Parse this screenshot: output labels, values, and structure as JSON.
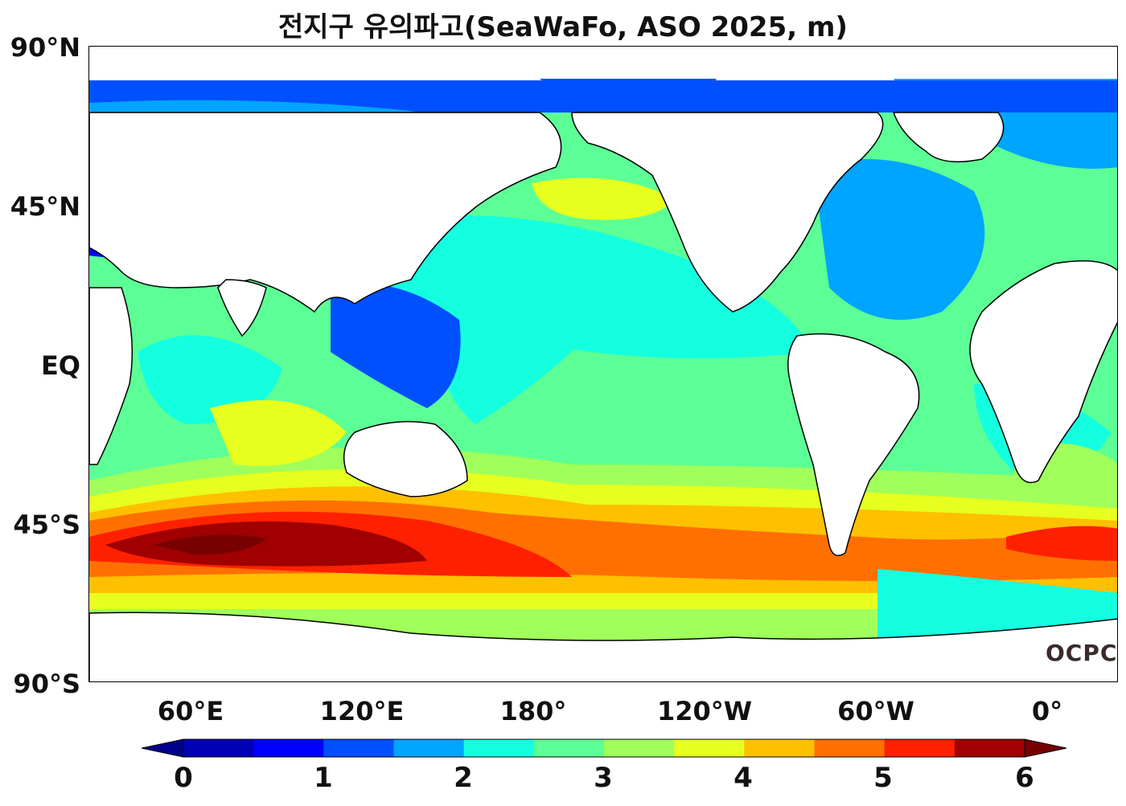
{
  "title": "전지구 유의파고(SeaWaFo, ASO 2025, m)",
  "map": {
    "lat_ticks": [
      "90°N",
      "45°N",
      "EQ",
      "45°S",
      "90°S"
    ],
    "lon_ticks": [
      "60°E",
      "120°E",
      "180°",
      "120°W",
      "60°W",
      "0°"
    ],
    "logo_text": "OCPC",
    "land_color": "#ffffff",
    "coastline_color": "#000000"
  },
  "colorbar": {
    "tick_labels": [
      "0",
      "1",
      "2",
      "3",
      "4",
      "5",
      "6"
    ],
    "colors": [
      "#0000b4",
      "#0000ff",
      "#0050ff",
      "#00a5ff",
      "#14ffe0",
      "#5cff96",
      "#a0ff5a",
      "#e6ff1e",
      "#ffc000",
      "#ff7000",
      "#ff2000",
      "#a00000"
    ],
    "under_color": "#00008c",
    "over_color": "#780000"
  }
}
